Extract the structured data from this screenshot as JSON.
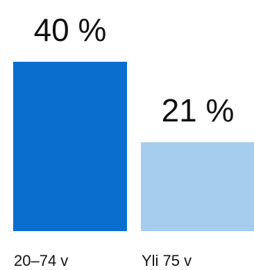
{
  "chart_data": {
    "type": "bar",
    "categories": [
      "20–74 v",
      "Yli 75 v"
    ],
    "values": [
      40,
      21
    ],
    "value_labels": [
      "40 %",
      "21 %"
    ],
    "colors": [
      "#0a6ecf",
      "#a6cdee"
    ],
    "title": "",
    "xlabel": "",
    "ylabel": "",
    "ylim": [
      0,
      40
    ],
    "grid": false,
    "legend": "none"
  }
}
